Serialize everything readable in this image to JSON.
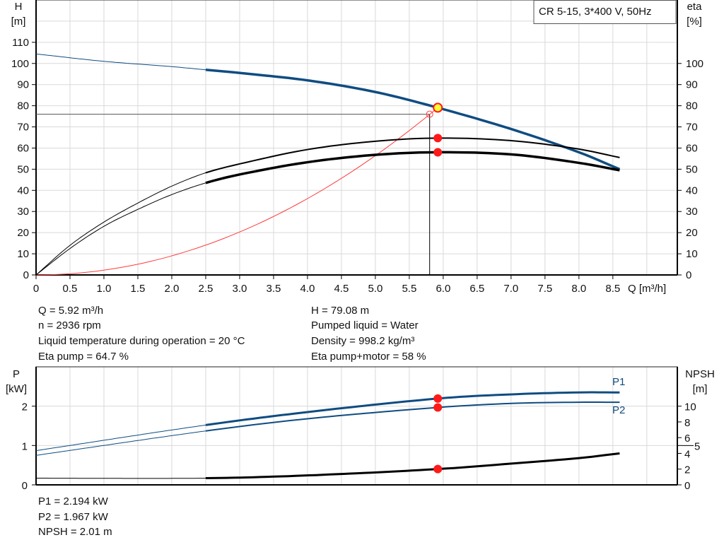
{
  "colors": {
    "head": "#0f4c81",
    "power": "#0f4c81",
    "eta": "#000000",
    "system": "#ff3b3b",
    "marker": "#ff1a1a",
    "op_point_fill": "#ffff33",
    "grid": "#d9d9d9"
  },
  "legend_box": "CR 5-15, 3*400 V, 50Hz",
  "chart_data": [
    {
      "type": "line",
      "name": "head-efficiency",
      "xlabel": "Q [m³/h]",
      "ylabel_left": [
        "H",
        "[m]"
      ],
      "ylabel_right": [
        "eta",
        "[%]"
      ],
      "xlim": [
        0,
        9.45
      ],
      "ylim": [
        0,
        130
      ],
      "xticks": [
        "0",
        "0.5",
        "1.0",
        "1.5",
        "2.0",
        "2.5",
        "3.0",
        "3.5",
        "4.0",
        "4.5",
        "5.0",
        "5.5",
        "6.0",
        "6.5",
        "7.0",
        "7.5",
        "8.0",
        "8.5"
      ],
      "yticks_left": [
        "0",
        "10",
        "20",
        "30",
        "40",
        "50",
        "60",
        "70",
        "80",
        "90",
        "100",
        "110"
      ],
      "yticks_right": [
        "0",
        "10",
        "20",
        "30",
        "40",
        "50",
        "60",
        "70",
        "80",
        "90",
        "100"
      ],
      "grid": true,
      "series": [
        {
          "key": "H",
          "color": "#0f4c81",
          "thick_from": 2.5,
          "x": [
            0,
            1,
            2,
            2.5,
            3,
            4,
            5,
            5.92,
            7,
            8,
            8.6
          ],
          "y": [
            104.5,
            101,
            98.5,
            97,
            95.5,
            92,
            86.5,
            79.08,
            69,
            58,
            50
          ]
        },
        {
          "key": "eta_pump",
          "color": "#000000",
          "thick_from": 2.5,
          "x": [
            0,
            0.5,
            1,
            1.5,
            2,
            2.5,
            3,
            4,
            5,
            5.92,
            7,
            8,
            8.6
          ],
          "y": [
            0,
            14,
            25,
            34,
            42,
            48.3,
            52.5,
            59.3,
            63.2,
            64.7,
            63.5,
            59.5,
            55.5
          ]
        },
        {
          "key": "eta_pump_motor",
          "color": "#000000",
          "thick_from": 2.5,
          "x": [
            0,
            0.5,
            1,
            1.5,
            2,
            2.5,
            3,
            4,
            5,
            5.92,
            7,
            8,
            8.6
          ],
          "y": [
            0,
            12.5,
            23,
            31,
            38,
            43.5,
            47.5,
            53.3,
            56.8,
            58,
            57,
            53,
            49.5
          ]
        }
      ],
      "system_curve": {
        "key": "system",
        "x_end": 5.92,
        "y_end": 79.08
      },
      "duty_point": {
        "q": 5.8,
        "h": 76
      },
      "operating_point": {
        "q": 5.92,
        "h": 79.08,
        "eta_pump": 64.7,
        "eta_pump_motor": 58
      }
    },
    {
      "type": "line",
      "name": "power-npsh",
      "ylabel_left": [
        "P",
        "[kW]"
      ],
      "ylabel_right": [
        "NPSH",
        "[m]"
      ],
      "xlim": [
        0,
        9.45
      ],
      "ylim_left": [
        0,
        3
      ],
      "ylim_right": [
        0,
        15
      ],
      "yticks_left": [
        "0",
        "1",
        "2"
      ],
      "yticks_right": [
        "0",
        "2",
        "4",
        "5",
        "6",
        "8",
        "10"
      ],
      "grid": true,
      "series": [
        {
          "key": "P1",
          "name": "P1",
          "color": "#0f4c81",
          "axis": "left",
          "thick_from": 2.5,
          "x": [
            0,
            2.5,
            4,
            5.92,
            7,
            8,
            8.6
          ],
          "y": [
            0.87,
            1.52,
            1.85,
            2.194,
            2.3,
            2.35,
            2.35
          ]
        },
        {
          "key": "P2",
          "name": "P2",
          "color": "#0f4c81",
          "axis": "left",
          "thick_from": 2.5,
          "x": [
            0,
            2.5,
            4,
            5.92,
            7,
            8,
            8.6
          ],
          "y": [
            0.75,
            1.37,
            1.68,
            1.967,
            2.07,
            2.1,
            2.1
          ]
        },
        {
          "key": "NPSH",
          "color": "#000000",
          "axis": "right",
          "thick_from": 2.5,
          "x": [
            0,
            2.5,
            4,
            5.92,
            7,
            8,
            8.6
          ],
          "y": [
            0.85,
            0.85,
            1.2,
            2.01,
            2.7,
            3.4,
            4.0
          ]
        }
      ]
    }
  ],
  "info_top": {
    "left": [
      "Q = 5.92 m³/h",
      "n = 2936 rpm",
      "Liquid temperature during operation = 20 °C",
      "Eta pump = 64.7 %"
    ],
    "right": [
      "H = 79.08 m",
      "Pumped liquid = Water",
      "Density = 998.2 kg/m³",
      "Eta pump+motor = 58 %"
    ]
  },
  "info_bottom": [
    "P1 = 2.194 kW",
    "P2 = 1.967 kW",
    "NPSH = 2.01 m"
  ]
}
